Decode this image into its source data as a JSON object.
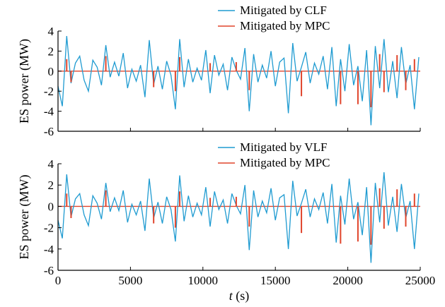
{
  "chart_data": [
    {
      "type": "line",
      "ylabel": "ES power (MW)",
      "xlabel": "",
      "xlim": [
        0,
        25000
      ],
      "ylim": [
        -6,
        4
      ],
      "yticks": [
        4,
        2,
        0,
        -2,
        -4,
        -6
      ],
      "xticks": [],
      "legend_position": "top-center",
      "series": [
        {
          "name": "Mitigated by CLF",
          "color": "#1f9bd1",
          "x": [
            0,
            300,
            600,
            900,
            1200,
            1500,
            1800,
            2100,
            2400,
            2700,
            3000,
            3300,
            3600,
            3900,
            4200,
            4500,
            4800,
            5100,
            5400,
            5700,
            6000,
            6300,
            6600,
            6900,
            7200,
            7500,
            7800,
            8100,
            8400,
            8700,
            9000,
            9300,
            9600,
            9900,
            10200,
            10500,
            10800,
            11100,
            11400,
            11700,
            12000,
            12300,
            12600,
            12900,
            13200,
            13500,
            13800,
            14100,
            14400,
            14700,
            15000,
            15300,
            15600,
            15900,
            16200,
            16500,
            16800,
            17100,
            17400,
            17700,
            18000,
            18300,
            18600,
            18900,
            19200,
            19500,
            19800,
            20100,
            20400,
            20700,
            21000,
            21300,
            21600,
            21900,
            22200,
            22500,
            22800,
            23100,
            23400,
            23700,
            24000,
            24300,
            24600,
            24900
          ],
          "values": [
            -1.5,
            -3.5,
            3.5,
            -1.2,
            0.8,
            1.5,
            -0.9,
            -2.0,
            1.1,
            0.4,
            -1.4,
            2.6,
            -0.6,
            0.9,
            -0.5,
            1.8,
            -1.7,
            0.2,
            -1.0,
            0.6,
            -2.6,
            3.1,
            -1.3,
            0.5,
            -1.8,
            1.0,
            -0.4,
            -3.8,
            3.2,
            -1.6,
            1.2,
            -1.1,
            0.3,
            -0.9,
            2.1,
            -2.2,
            1.6,
            -0.4,
            0.7,
            -1.9,
            1.4,
            0.1,
            -0.8,
            2.3,
            -4.0,
            1.7,
            -1.1,
            0.6,
            -0.7,
            2.0,
            -1.5,
            0.9,
            1.3,
            -4.2,
            2.8,
            -1.0,
            0.4,
            1.9,
            -1.2,
            0.8,
            -0.3,
            1.5,
            -1.8,
            2.4,
            -3.5,
            1.2,
            -2.0,
            2.7,
            -1.4,
            0.5,
            -3.0,
            2.1,
            -5.4,
            2.5,
            -1.7,
            3.2,
            -2.1,
            1.0,
            -2.7,
            2.4,
            -1.3,
            0.6,
            -3.8,
            1.4
          ]
        },
        {
          "name": "Mitigated by MPC",
          "color": "#e0452c",
          "x": [
            600,
            900,
            3300,
            6600,
            8100,
            8400,
            10500,
            12300,
            13200,
            16800,
            19500,
            20700,
            21600,
            22200,
            22500,
            23400,
            24000,
            24600
          ],
          "values": [
            1.2,
            -1.1,
            1.5,
            -1.6,
            -2.0,
            1.4,
            0.8,
            0.9,
            -1.9,
            -2.5,
            -3.3,
            -3.3,
            -3.6,
            1.7,
            -2.1,
            1.6,
            -1.9,
            1.2
          ]
        }
      ]
    },
    {
      "type": "line",
      "ylabel": "ES power (MW)",
      "xlabel": "t (s)",
      "xlabel_italic_part": "t",
      "xlabel_rest": " (s)",
      "xlim": [
        0,
        25000
      ],
      "ylim": [
        -6,
        4
      ],
      "yticks": [
        4,
        2,
        0,
        -2,
        -4,
        -6
      ],
      "xticks": [
        0,
        5000,
        10000,
        15000,
        20000,
        25000
      ],
      "legend_position": "top-center",
      "series": [
        {
          "name": "Mitigated by VLF",
          "color": "#1f9bd1",
          "x": [
            0,
            300,
            600,
            900,
            1200,
            1500,
            1800,
            2100,
            2400,
            2700,
            3000,
            3300,
            3600,
            3900,
            4200,
            4500,
            4800,
            5100,
            5400,
            5700,
            6000,
            6300,
            6600,
            6900,
            7200,
            7500,
            7800,
            8100,
            8400,
            8700,
            9000,
            9300,
            9600,
            9900,
            10200,
            10500,
            10800,
            11100,
            11400,
            11700,
            12000,
            12300,
            12600,
            12900,
            13200,
            13500,
            13800,
            14100,
            14400,
            14700,
            15000,
            15300,
            15600,
            15900,
            16200,
            16500,
            16800,
            17100,
            17400,
            17700,
            18000,
            18300,
            18600,
            18900,
            19200,
            19500,
            19800,
            20100,
            20400,
            20700,
            21000,
            21300,
            21600,
            21900,
            22200,
            22500,
            22800,
            23100,
            23400,
            23700,
            24000,
            24300,
            24600,
            24900
          ],
          "values": [
            -1.3,
            -3.0,
            3.0,
            -1.0,
            0.7,
            1.2,
            -0.8,
            -1.8,
            1.0,
            0.3,
            -1.2,
            2.2,
            -0.5,
            0.8,
            -0.4,
            1.5,
            -1.5,
            0.2,
            -0.8,
            0.5,
            -2.3,
            2.6,
            -1.1,
            0.4,
            -1.6,
            0.9,
            -0.3,
            -3.3,
            2.9,
            -1.4,
            1.0,
            -1.0,
            0.3,
            -0.8,
            1.8,
            -1.9,
            1.4,
            -0.3,
            0.6,
            -1.6,
            1.2,
            0.1,
            -0.7,
            2.0,
            -4.1,
            1.5,
            -1.0,
            0.5,
            -0.6,
            1.7,
            -1.3,
            0.8,
            1.1,
            -4.0,
            2.4,
            -0.9,
            0.3,
            1.6,
            -1.0,
            0.7,
            -0.3,
            1.3,
            -1.6,
            2.1,
            -3.4,
            1.0,
            -1.7,
            2.6,
            -1.2,
            0.4,
            -2.7,
            1.8,
            -5.3,
            2.2,
            -1.5,
            3.2,
            -1.8,
            0.9,
            -2.4,
            2.1,
            -1.1,
            0.5,
            -4.0,
            1.2
          ]
        },
        {
          "name": "Mitigated by MPC",
          "color": "#e0452c",
          "x": [
            600,
            900,
            3300,
            6600,
            8100,
            8400,
            10500,
            12300,
            13200,
            16800,
            19500,
            20700,
            21600,
            22200,
            22500,
            23400,
            24000,
            24600
          ],
          "values": [
            1.2,
            -1.1,
            1.5,
            -1.6,
            -2.0,
            1.4,
            0.8,
            0.9,
            -1.9,
            -2.5,
            -3.5,
            -3.3,
            -3.6,
            1.7,
            -2.1,
            1.6,
            -1.9,
            1.2
          ]
        }
      ]
    }
  ]
}
